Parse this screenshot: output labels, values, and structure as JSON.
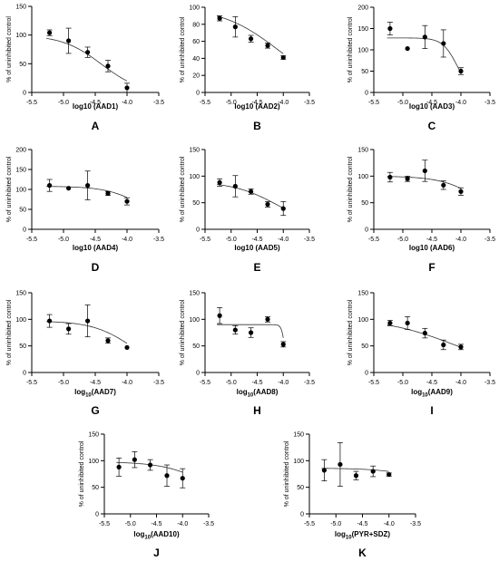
{
  "figure": {
    "panels": [
      {
        "letter": "A",
        "ylabel": "% of uninhibited control",
        "xlabel_pre": "log10 (AAD1)",
        "xlabel_sub": "",
        "xlabel_post": ""
      },
      {
        "letter": "B",
        "ylabel": "% of uninhibited control",
        "xlabel_pre": "log10 (AAD2)",
        "xlabel_sub": "",
        "xlabel_post": ""
      },
      {
        "letter": "C",
        "ylabel": "% of uninhibited control",
        "xlabel_pre": "log10 (AAD3)",
        "xlabel_sub": "",
        "xlabel_post": ""
      },
      {
        "letter": "D",
        "ylabel": "% of uninhibited control",
        "xlabel_pre": "log10 (AAD4)",
        "xlabel_sub": "",
        "xlabel_post": ""
      },
      {
        "letter": "E",
        "ylabel": "% of uninhibited control",
        "xlabel_pre": "log10 (AAD5)",
        "xlabel_sub": "",
        "xlabel_post": ""
      },
      {
        "letter": "F",
        "ylabel": "% of uninhibited control",
        "xlabel_pre": "log10 (AAD6)",
        "xlabel_sub": "",
        "xlabel_post": ""
      },
      {
        "letter": "G",
        "ylabel": "% of uninhibited control",
        "xlabel_pre": "log",
        "xlabel_sub": "10",
        "xlabel_post": "(AAD7)"
      },
      {
        "letter": "H",
        "ylabel": "% of uninhibited control",
        "xlabel_pre": "log",
        "xlabel_sub": "10",
        "xlabel_post": "(AAD8)"
      },
      {
        "letter": "I",
        "ylabel": "% of uninhibited control",
        "xlabel_pre": "log",
        "xlabel_sub": "10",
        "xlabel_post": "(AAD9)"
      },
      {
        "letter": "J",
        "ylabel": "% of uninhibited control",
        "xlabel_pre": "log",
        "xlabel_sub": "10",
        "xlabel_post": "(AAD10)"
      },
      {
        "letter": "K",
        "ylabel": "% of uninhibited control",
        "xlabel_pre": "log",
        "xlabel_sub": "10",
        "xlabel_post": "(PYR+SDZ)"
      }
    ]
  },
  "chart_data": [
    {
      "type": "scatter",
      "panel": "A",
      "xlim": [
        -5.5,
        -3.5
      ],
      "ylim": [
        0,
        150
      ],
      "xticks": [
        "-5.5",
        "-5.0",
        "-4.5",
        "-4.0",
        "-3.5"
      ],
      "yticks": [
        "0",
        "50",
        "100",
        "150"
      ],
      "x": [
        -5.22,
        -4.92,
        -4.62,
        -4.3,
        -4.0
      ],
      "y": [
        104,
        90,
        70,
        46,
        8
      ],
      "err": [
        5,
        22,
        9,
        10,
        8
      ],
      "fit": {
        "top": 100,
        "bottom": -2,
        "logic50": -4.4,
        "hill": 1.4
      }
    },
    {
      "type": "scatter",
      "panel": "B",
      "xlim": [
        -5.5,
        -3.5
      ],
      "ylim": [
        0,
        100
      ],
      "xticks": [
        "-5.5",
        "-5.0",
        "-4.5",
        "-4.0",
        "-3.5"
      ],
      "yticks": [
        "0",
        "20",
        "40",
        "60",
        "80",
        "100"
      ],
      "x": [
        -5.22,
        -4.92,
        -4.62,
        -4.3,
        -4.0
      ],
      "y": [
        87,
        77,
        63,
        55,
        41
      ],
      "err": [
        3,
        12,
        4,
        3,
        2
      ],
      "fit": {
        "top": 100,
        "bottom": 0,
        "logic50": -4.1,
        "hill": 0.8
      }
    },
    {
      "type": "scatter",
      "panel": "C",
      "xlim": [
        -5.5,
        -3.5
      ],
      "ylim": [
        0,
        200
      ],
      "xticks": [
        "-5.5",
        "-5.0",
        "-4.5",
        "-4.0",
        "-3.5"
      ],
      "yticks": [
        "0",
        "50",
        "100",
        "150",
        "200"
      ],
      "x": [
        -5.22,
        -4.92,
        -4.62,
        -4.3,
        -4.0
      ],
      "y": [
        150,
        103,
        130,
        115,
        50
      ],
      "err": [
        15,
        0,
        27,
        32,
        8
      ],
      "fit": {
        "top": 128,
        "bottom": 0,
        "logic50": -4.07,
        "hill": 3.5
      }
    },
    {
      "type": "scatter",
      "panel": "D",
      "xlim": [
        -5.5,
        -3.5
      ],
      "ylim": [
        0,
        200
      ],
      "xticks": [
        "-5.5",
        "-5.0",
        "-4.5",
        "-4.0",
        "-3.5"
      ],
      "yticks": [
        "0",
        "50",
        "100",
        "150",
        "200"
      ],
      "x": [
        -5.22,
        -4.92,
        -4.62,
        -4.3,
        -4.0
      ],
      "y": [
        110,
        103,
        110,
        90,
        70
      ],
      "err": [
        15,
        0,
        36,
        5,
        9
      ],
      "fit": {
        "top": 108,
        "bottom": 0,
        "logic50": -3.7,
        "hill": 1.5
      }
    },
    {
      "type": "scatter",
      "panel": "E",
      "xlim": [
        -5.5,
        -3.5
      ],
      "ylim": [
        0,
        150
      ],
      "xticks": [
        "-5.5",
        "-5.0",
        "-4.5",
        "-4.0",
        "-3.5"
      ],
      "yticks": [
        "0",
        "50",
        "100",
        "150"
      ],
      "x": [
        -5.22,
        -4.92,
        -4.62,
        -4.3,
        -4.0
      ],
      "y": [
        88,
        81,
        71,
        47,
        39
      ],
      "err": [
        7,
        20,
        5,
        5,
        13
      ],
      "fit": {
        "top": 90,
        "bottom": 0,
        "logic50": -4.1,
        "hill": 1.0
      }
    },
    {
      "type": "scatter",
      "panel": "F",
      "xlim": [
        -5.5,
        -3.5
      ],
      "ylim": [
        0,
        150
      ],
      "xticks": [
        "-5.5",
        "-5.0",
        "-4.5",
        "-4.0",
        "-3.5"
      ],
      "yticks": [
        "0",
        "50",
        "100",
        "150"
      ],
      "x": [
        -5.22,
        -4.92,
        -4.62,
        -4.3,
        -4.0
      ],
      "y": [
        98,
        95,
        110,
        83,
        71
      ],
      "err": [
        9,
        5,
        20,
        8,
        7
      ],
      "fit": {
        "top": 100,
        "bottom": 0,
        "logic50": -3.6,
        "hill": 1.3
      }
    },
    {
      "type": "scatter",
      "panel": "G",
      "xlim": [
        -5.5,
        -3.5
      ],
      "ylim": [
        0,
        150
      ],
      "xticks": [
        "-5.5",
        "-5.0",
        "-4.5",
        "-4.0",
        "-3.5"
      ],
      "yticks": [
        "0",
        "50",
        "100",
        "150"
      ],
      "x": [
        -5.22,
        -4.92,
        -4.62,
        -4.3,
        -4.0
      ],
      "y": [
        97,
        82,
        97,
        60,
        47
      ],
      "err": [
        12,
        10,
        30,
        5,
        0
      ],
      "fit": {
        "top": 97,
        "bottom": 0,
        "logic50": -3.92,
        "hill": 1.4
      }
    },
    {
      "type": "scatter",
      "panel": "H",
      "xlim": [
        -5.5,
        -3.5
      ],
      "ylim": [
        0,
        150
      ],
      "xticks": [
        "-5.5",
        "-5.0",
        "-4.5",
        "-4.0",
        "-3.5"
      ],
      "yticks": [
        "0",
        "50",
        "100",
        "150"
      ],
      "x": [
        -5.22,
        -4.92,
        -4.62,
        -4.3,
        -4.0
      ],
      "y": [
        107,
        80,
        75,
        100,
        53
      ],
      "err": [
        15,
        8,
        9,
        5,
        5
      ],
      "fit": {
        "top": 90,
        "bottom": 0,
        "logic50": -3.97,
        "hill": 14
      }
    },
    {
      "type": "scatter",
      "panel": "I",
      "xlim": [
        -5.5,
        -3.5
      ],
      "ylim": [
        0,
        150
      ],
      "xticks": [
        "-5.5",
        "-5.0",
        "-4.5",
        "-4.0",
        "-3.5"
      ],
      "yticks": [
        "0",
        "50",
        "100",
        "150"
      ],
      "x": [
        -5.22,
        -4.92,
        -4.62,
        -4.3,
        -4.0
      ],
      "y": [
        93,
        93,
        74,
        52,
        48
      ],
      "err": [
        5,
        12,
        9,
        9,
        5
      ],
      "fit": {
        "top": 103,
        "bottom": 0,
        "logic50": -4.1,
        "hill": 0.7
      }
    },
    {
      "type": "scatter",
      "panel": "J",
      "xlim": [
        -5.5,
        -3.5
      ],
      "ylim": [
        0,
        150
      ],
      "xticks": [
        "-5.5",
        "-5.0",
        "-4.5",
        "-4.0",
        "-3.5"
      ],
      "yticks": [
        "0",
        "50",
        "100",
        "150"
      ],
      "x": [
        -5.22,
        -4.92,
        -4.62,
        -4.3,
        -4.0
      ],
      "y": [
        88,
        102,
        92,
        72,
        67
      ],
      "err": [
        17,
        15,
        10,
        20,
        18
      ],
      "fit": {
        "top": 98,
        "bottom": 0,
        "logic50": -3.4,
        "hill": 1.0
      }
    },
    {
      "type": "scatter",
      "panel": "K",
      "xlim": [
        -5.5,
        -3.5
      ],
      "ylim": [
        0,
        150
      ],
      "xticks": [
        "-5.5",
        "-5.0",
        "-4.5",
        "-4.0",
        "-3.5"
      ],
      "yticks": [
        "0",
        "50",
        "100",
        "150"
      ],
      "x": [
        -5.22,
        -4.92,
        -4.62,
        -4.3,
        -4.0
      ],
      "y": [
        82,
        93,
        72,
        80,
        74
      ],
      "err": [
        20,
        41,
        8,
        10,
        3
      ],
      "fit": {
        "top": 86,
        "bottom": 0,
        "logic50": -2.9,
        "hill": 1.0
      }
    }
  ]
}
